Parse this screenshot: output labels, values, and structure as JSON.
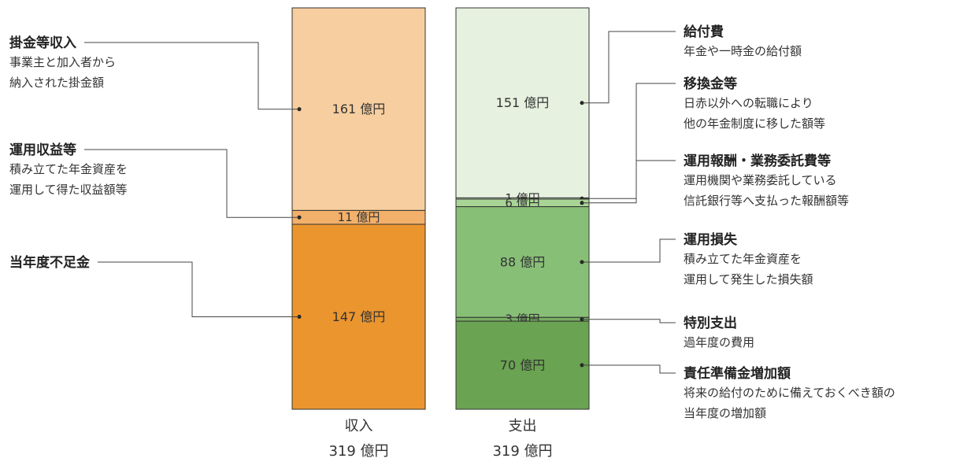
{
  "chart_data": {
    "type": "bar",
    "unit": "億円",
    "columns": [
      {
        "name": "収入",
        "total_label": "319 億円",
        "segments": [
          {
            "value": 161,
            "label": "161 億円",
            "color": "#f7ce9f",
            "title": "掛金等収入",
            "desc": "事業主と加入者から\n納入された掛金額"
          },
          {
            "value": 11,
            "label": "11 億円",
            "color": "#f2b06a",
            "title": "運用収益等",
            "desc": "積み立てた年金資産を\n運用して得た収益額等"
          },
          {
            "value": 147,
            "label": "147 億円",
            "color": "#eb952e",
            "title": "当年度不足金",
            "desc": ""
          }
        ]
      },
      {
        "name": "支出",
        "total_label": "319 億円",
        "segments": [
          {
            "value": 151,
            "label": "151 億円",
            "color": "#e6f1df",
            "title": "給付費",
            "desc": "年金や一時金の給付額"
          },
          {
            "value": 1,
            "label": "1 億円",
            "color": "#c8e2bc",
            "title": "移換金等",
            "desc": "日赤以外への転職により\n他の年金制度に移した額等"
          },
          {
            "value": 6,
            "label": "6 億円",
            "color": "#a8d596",
            "title": "運用報酬・業務委託費等",
            "desc": "運用機関や業務委託している\n信託銀行等へ支払った報酬額等"
          },
          {
            "value": 88,
            "label": "88 億円",
            "color": "#88bf77",
            "title": "運用損失",
            "desc": "積み立てた年金資産を\n運用して発生した損失額"
          },
          {
            "value": 3,
            "label": "3 億円",
            "color": "#77b062",
            "title": "特別支出",
            "desc": "過年度の費用"
          },
          {
            "value": 70,
            "label": "70 億円",
            "color": "#6aa351",
            "title": "責任準備金増加額",
            "desc": "将来の給付のために備えておくべき額の\n当年度の増加額"
          }
        ]
      }
    ]
  }
}
